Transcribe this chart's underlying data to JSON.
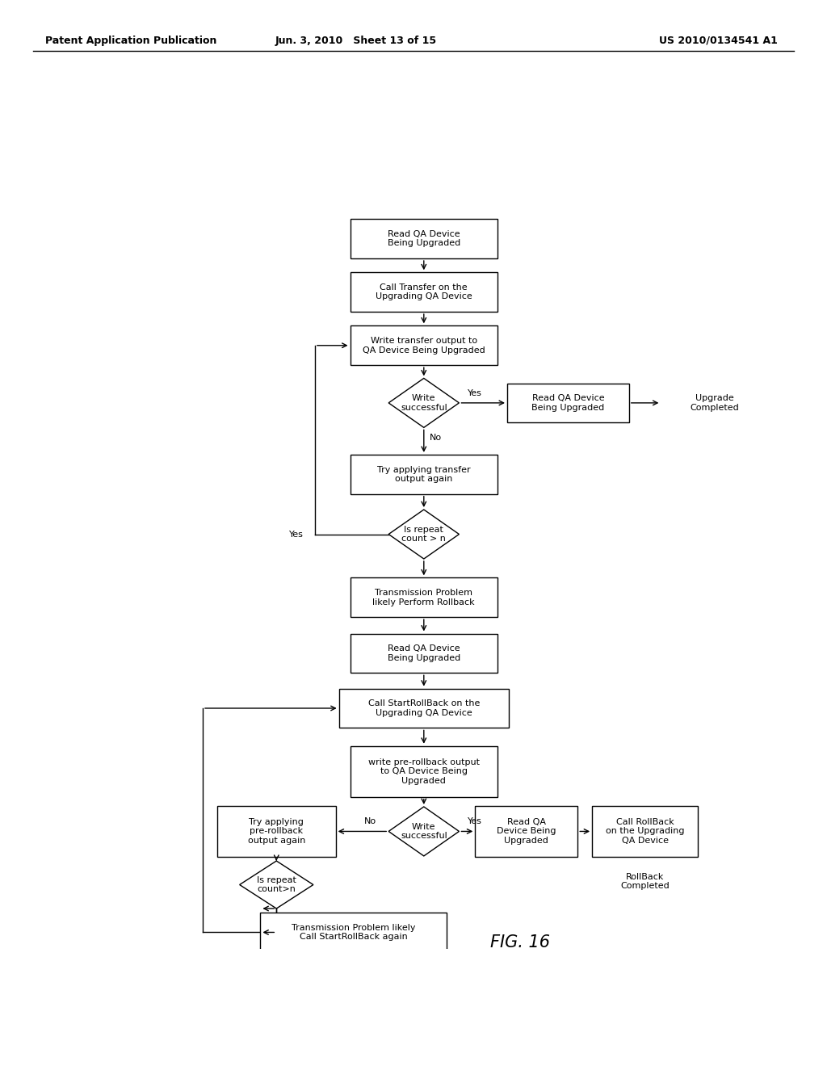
{
  "header_left": "Patent Application Publication",
  "header_center": "Jun. 3, 2010   Sheet 13 of 15",
  "header_right": "US 2010/0134541 A1",
  "figure_label": "FIG. 16",
  "bg_color": "#ffffff"
}
